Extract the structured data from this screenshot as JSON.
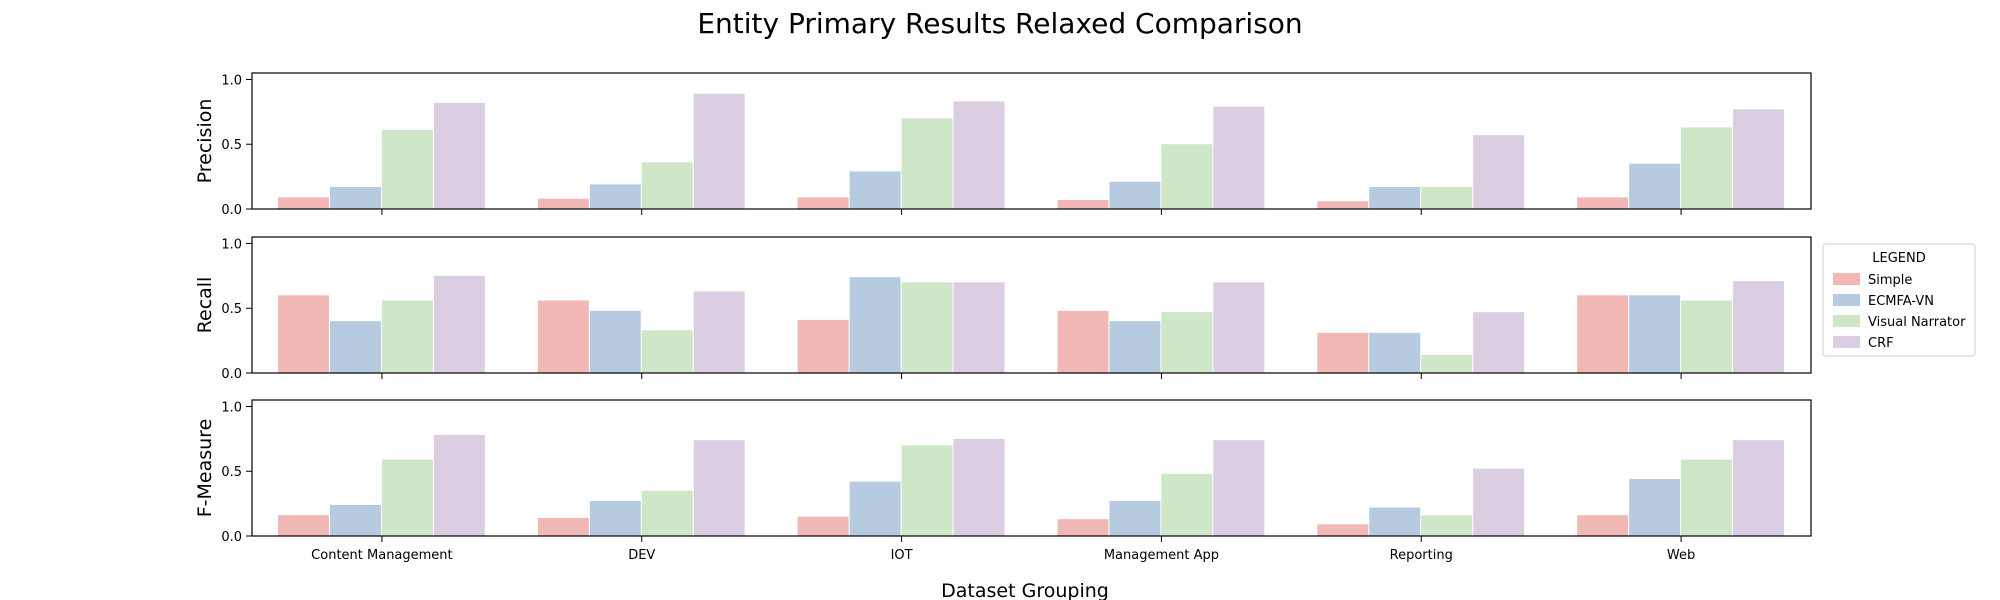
{
  "chart_data": {
    "type": "bar",
    "title": "Entity Primary Results Relaxed Comparison",
    "xlabel": "Dataset Grouping",
    "categories": [
      "Content Management",
      "DEV",
      "IOT",
      "Management App",
      "Reporting",
      "Web"
    ],
    "ylim": [
      0,
      1.05
    ],
    "yticks": [
      "0.0",
      "0.5",
      "1.0"
    ],
    "legend": {
      "title": "LEGEND",
      "placement": "right",
      "entries": [
        "Simple",
        "ECMFA-VN",
        "Visual Narrator",
        "CRF"
      ]
    },
    "colors": [
      "#f2b8b6",
      "#b6cbdf",
      "#cfe6c9",
      "#dccee2"
    ],
    "grid": false,
    "panels": [
      {
        "ylabel": "Precision",
        "series": [
          {
            "name": "Simple",
            "values": [
              0.09,
              0.08,
              0.09,
              0.07,
              0.06,
              0.09
            ]
          },
          {
            "name": "ECMFA-VN",
            "values": [
              0.17,
              0.19,
              0.29,
              0.21,
              0.17,
              0.35
            ]
          },
          {
            "name": "Visual Narrator",
            "values": [
              0.61,
              0.36,
              0.7,
              0.5,
              0.17,
              0.63
            ]
          },
          {
            "name": "CRF",
            "values": [
              0.82,
              0.89,
              0.83,
              0.79,
              0.57,
              0.77
            ]
          }
        ]
      },
      {
        "ylabel": "Recall",
        "series": [
          {
            "name": "Simple",
            "values": [
              0.6,
              0.56,
              0.41,
              0.48,
              0.31,
              0.6
            ]
          },
          {
            "name": "ECMFA-VN",
            "values": [
              0.4,
              0.48,
              0.74,
              0.4,
              0.31,
              0.6
            ]
          },
          {
            "name": "Visual Narrator",
            "values": [
              0.56,
              0.33,
              0.7,
              0.47,
              0.14,
              0.56
            ]
          },
          {
            "name": "CRF",
            "values": [
              0.75,
              0.63,
              0.7,
              0.7,
              0.47,
              0.71
            ]
          }
        ]
      },
      {
        "ylabel": "F-Measure",
        "series": [
          {
            "name": "Simple",
            "values": [
              0.16,
              0.14,
              0.15,
              0.13,
              0.09,
              0.16
            ]
          },
          {
            "name": "ECMFA-VN",
            "values": [
              0.24,
              0.27,
              0.42,
              0.27,
              0.22,
              0.44
            ]
          },
          {
            "name": "Visual Narrator",
            "values": [
              0.59,
              0.35,
              0.7,
              0.48,
              0.16,
              0.59
            ]
          },
          {
            "name": "CRF",
            "values": [
              0.78,
              0.74,
              0.75,
              0.74,
              0.52,
              0.74
            ]
          }
        ]
      }
    ]
  }
}
